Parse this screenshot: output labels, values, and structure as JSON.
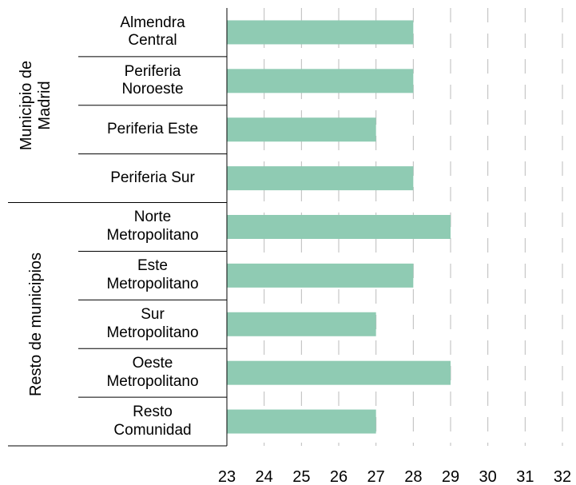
{
  "chart_data": {
    "type": "bar",
    "color": "#8fcbb3",
    "groups": [
      {
        "name": "Municipio de\nMadrid",
        "categories": [
          "Almendra\nCentral",
          "Periferia\nNoroeste",
          "Periferia Este",
          "Periferia Sur"
        ],
        "values": [
          28,
          28,
          27,
          28
        ]
      },
      {
        "name": "Resto de municipios",
        "categories": [
          "Norte\nMetropolitano",
          "Este\nMetropolitano",
          "Sur\nMetropolitano",
          "Oeste\nMetropolitano",
          "Resto\nComunidad"
        ],
        "values": [
          29,
          28,
          27,
          29,
          27
        ]
      }
    ],
    "xlim": [
      23,
      32
    ],
    "xticks": [
      23,
      24,
      25,
      26,
      27,
      28,
      29,
      30,
      31,
      32
    ],
    "grid": true
  }
}
